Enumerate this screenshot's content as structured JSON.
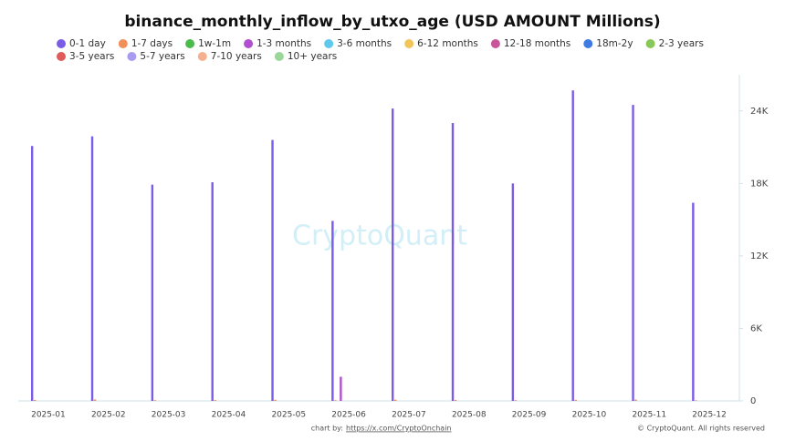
{
  "chart_data": {
    "type": "bar",
    "title": "binance_monthly_inflow_by_utxo_age (USD AMOUNT Millions)",
    "watermark": "CryptoQuant",
    "footer_prefix": "chart by:",
    "footer_link": "https://x.com/CryptoOnchain",
    "copyright": "© CryptoQuant. All rights reserved",
    "categories": [
      "2025-01",
      "2025-02",
      "2025-03",
      "2025-04",
      "2025-05",
      "2025-06",
      "2025-07",
      "2025-08",
      "2025-09",
      "2025-10",
      "2025-11",
      "2025-12"
    ],
    "series": [
      {
        "name": "0-1 day",
        "color": "#7b5ce6",
        "values": [
          21100,
          21900,
          17900,
          18100,
          21600,
          14900,
          24200,
          23000,
          18000,
          25700,
          24500,
          16400
        ]
      },
      {
        "name": "1-7 days",
        "color": "#f0905a",
        "values": [
          80,
          120,
          60,
          70,
          90,
          60,
          100,
          80,
          60,
          90,
          110,
          50
        ]
      },
      {
        "name": "1w-1m",
        "color": "#4cbb4c",
        "values": [
          0,
          0,
          0,
          0,
          0,
          0,
          0,
          0,
          0,
          0,
          0,
          0
        ]
      },
      {
        "name": "1-3 months",
        "color": "#b04fd0",
        "values": [
          0,
          0,
          0,
          0,
          0,
          2000,
          0,
          0,
          0,
          0,
          0,
          0
        ]
      },
      {
        "name": "3-6 months",
        "color": "#5fc8ec",
        "values": [
          0,
          0,
          0,
          0,
          0,
          0,
          0,
          0,
          0,
          0,
          0,
          0
        ]
      },
      {
        "name": "6-12 months",
        "color": "#f0c55a",
        "values": [
          0,
          0,
          0,
          0,
          0,
          0,
          0,
          0,
          0,
          0,
          0,
          0
        ]
      },
      {
        "name": "12-18 months",
        "color": "#c9559a",
        "values": [
          0,
          0,
          0,
          0,
          0,
          0,
          0,
          0,
          0,
          0,
          0,
          0
        ]
      },
      {
        "name": "18m-2y",
        "color": "#3f7be0",
        "values": [
          0,
          0,
          0,
          0,
          0,
          0,
          0,
          0,
          0,
          0,
          0,
          0
        ]
      },
      {
        "name": "2-3 years",
        "color": "#88c85a",
        "values": [
          0,
          0,
          0,
          0,
          0,
          0,
          0,
          0,
          0,
          0,
          0,
          0
        ]
      },
      {
        "name": "3-5 years",
        "color": "#e05a5a",
        "values": [
          0,
          0,
          0,
          0,
          0,
          0,
          0,
          0,
          0,
          0,
          0,
          0
        ]
      },
      {
        "name": "5-7 years",
        "color": "#a99cf0",
        "values": [
          0,
          0,
          0,
          0,
          0,
          0,
          0,
          0,
          0,
          0,
          0,
          0
        ]
      },
      {
        "name": "7-10 years",
        "color": "#f5b090",
        "values": [
          0,
          0,
          0,
          0,
          0,
          0,
          0,
          0,
          0,
          0,
          0,
          0
        ]
      },
      {
        "name": "10+ years",
        "color": "#99d899",
        "values": [
          0,
          0,
          0,
          0,
          0,
          0,
          0,
          0,
          0,
          0,
          0,
          0
        ]
      }
    ],
    "ylim": [
      0,
      27000
    ],
    "yticks": [
      0,
      {
        "value": 6000,
        "label": "6K"
      },
      {
        "value": 12000,
        "label": "12K"
      },
      {
        "value": 18000,
        "label": "18K"
      },
      {
        "value": 24000,
        "label": "24K"
      }
    ],
    "grid": false,
    "legend": "top"
  }
}
